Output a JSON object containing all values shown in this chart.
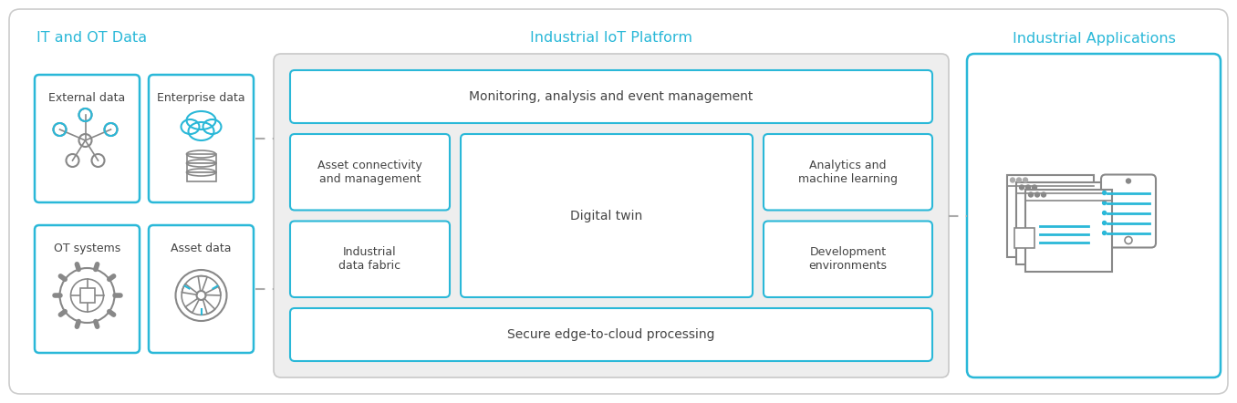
{
  "background_color": "#ffffff",
  "cyan": "#2ab8d8",
  "gray_fill": "#efefef",
  "white_fill": "#ffffff",
  "text_color": "#444444",
  "cyan_text": "#2ab8d8",
  "dash_color": "#aaaaaa",
  "outer_edge": "#cccccc",
  "icon_gray": "#888888",
  "icon_light": "#aaaaaa",
  "boxes": {
    "monitoring": "Monitoring, analysis and event management",
    "asset_conn": "Asset connectivity\nand management",
    "digital_twin": "Digital twin",
    "analytics": "Analytics and\nmachine learning",
    "industrial_fabric": "Industrial\ndata fabric",
    "development": "Development\nenvironments",
    "secure_edge": "Secure edge-to-cloud processing"
  },
  "it_ot_labels": [
    "OT systems",
    "Asset data",
    "External data",
    "Enterprise data"
  ],
  "section_labels": [
    "IT and OT Data",
    "Industrial IoT Platform",
    "Industrial Applications"
  ],
  "figsize": [
    13.56,
    4.42
  ],
  "dpi": 100
}
